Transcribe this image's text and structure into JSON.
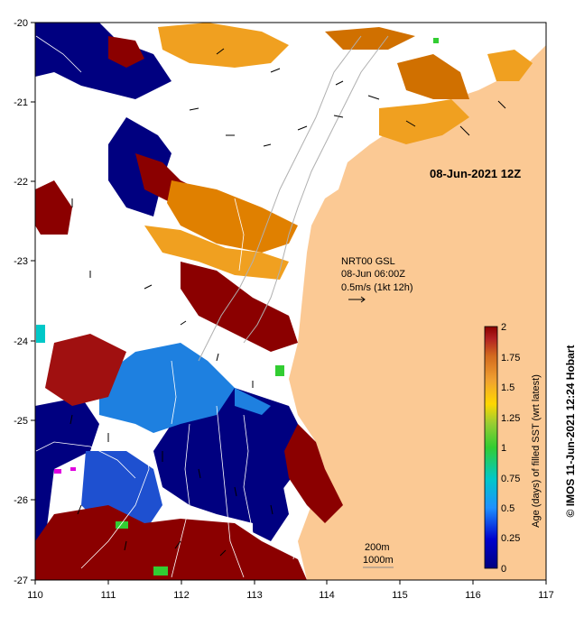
{
  "map": {
    "title": "08-Jun-2021 12Z",
    "current_label": {
      "line1": "NRT00 GSL",
      "line2": "08-Jun 06:00Z",
      "line3": "0.5m/s (1kt 12h)"
    },
    "depth_label": {
      "line1": "200m",
      "line2": "1000m"
    },
    "x_ticks": [
      "110",
      "111",
      "112",
      "113",
      "114",
      "115",
      "116",
      "117"
    ],
    "y_ticks": [
      "-20",
      "-21",
      "-22",
      "-23",
      "-24",
      "-25",
      "-26",
      "-27"
    ],
    "colorbar": {
      "label": "Age (days) of filled SST (wrt latest)",
      "ticks": [
        "2",
        "1.75",
        "1.5",
        "1.25",
        "1",
        "0.75",
        "0.5",
        "0.25",
        "0"
      ],
      "colors": [
        "#8b0000",
        "#b22222",
        "#d2691e",
        "#f0a030",
        "#ffd700",
        "#9acd32",
        "#32cd32",
        "#00c8c8",
        "#1e90ff",
        "#0000cd",
        "#000080"
      ]
    },
    "credit": "© IMOS 11-Jun-2021 12:24 Hobart",
    "land_color": "#fbc994",
    "cloud_color": "#ffffff"
  }
}
